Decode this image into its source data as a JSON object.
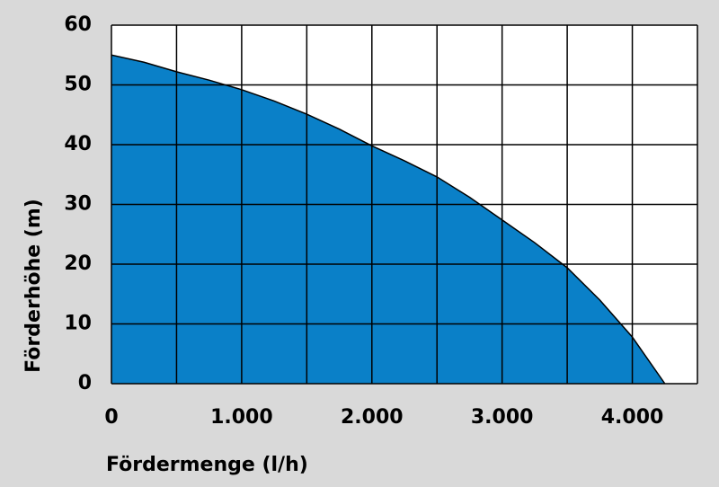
{
  "chart_data": {
    "type": "area",
    "x_label": "Fördermenge (l/h)",
    "y_label": "Förderhöhe (m)",
    "x": [
      0,
      250,
      500,
      750,
      1000,
      1250,
      1500,
      1750,
      2000,
      2250,
      2500,
      2750,
      3000,
      3250,
      3500,
      3750,
      4000,
      4250
    ],
    "values": [
      55,
      53.8,
      52.2,
      50.8,
      49.2,
      47.3,
      45.1,
      42.6,
      39.8,
      37.3,
      34.6,
      31.2,
      27.4,
      23.6,
      19.4,
      14,
      7.8,
      0
    ],
    "color": "#0a80c8",
    "xlim": [
      0,
      4500
    ],
    "ylim": [
      0,
      60
    ],
    "xticks": [
      0,
      {
        "value": 1000,
        "label": "1.000"
      },
      {
        "value": 2000,
        "label": "2.000"
      },
      {
        "value": 3000,
        "label": "3.000"
      },
      {
        "value": 4000,
        "label": "4.000"
      }
    ],
    "x_minor_grid": [
      500,
      1500,
      2500,
      3500,
      4500
    ],
    "yticks": [
      0,
      10,
      20,
      30,
      40,
      50,
      60
    ],
    "grid": true
  }
}
